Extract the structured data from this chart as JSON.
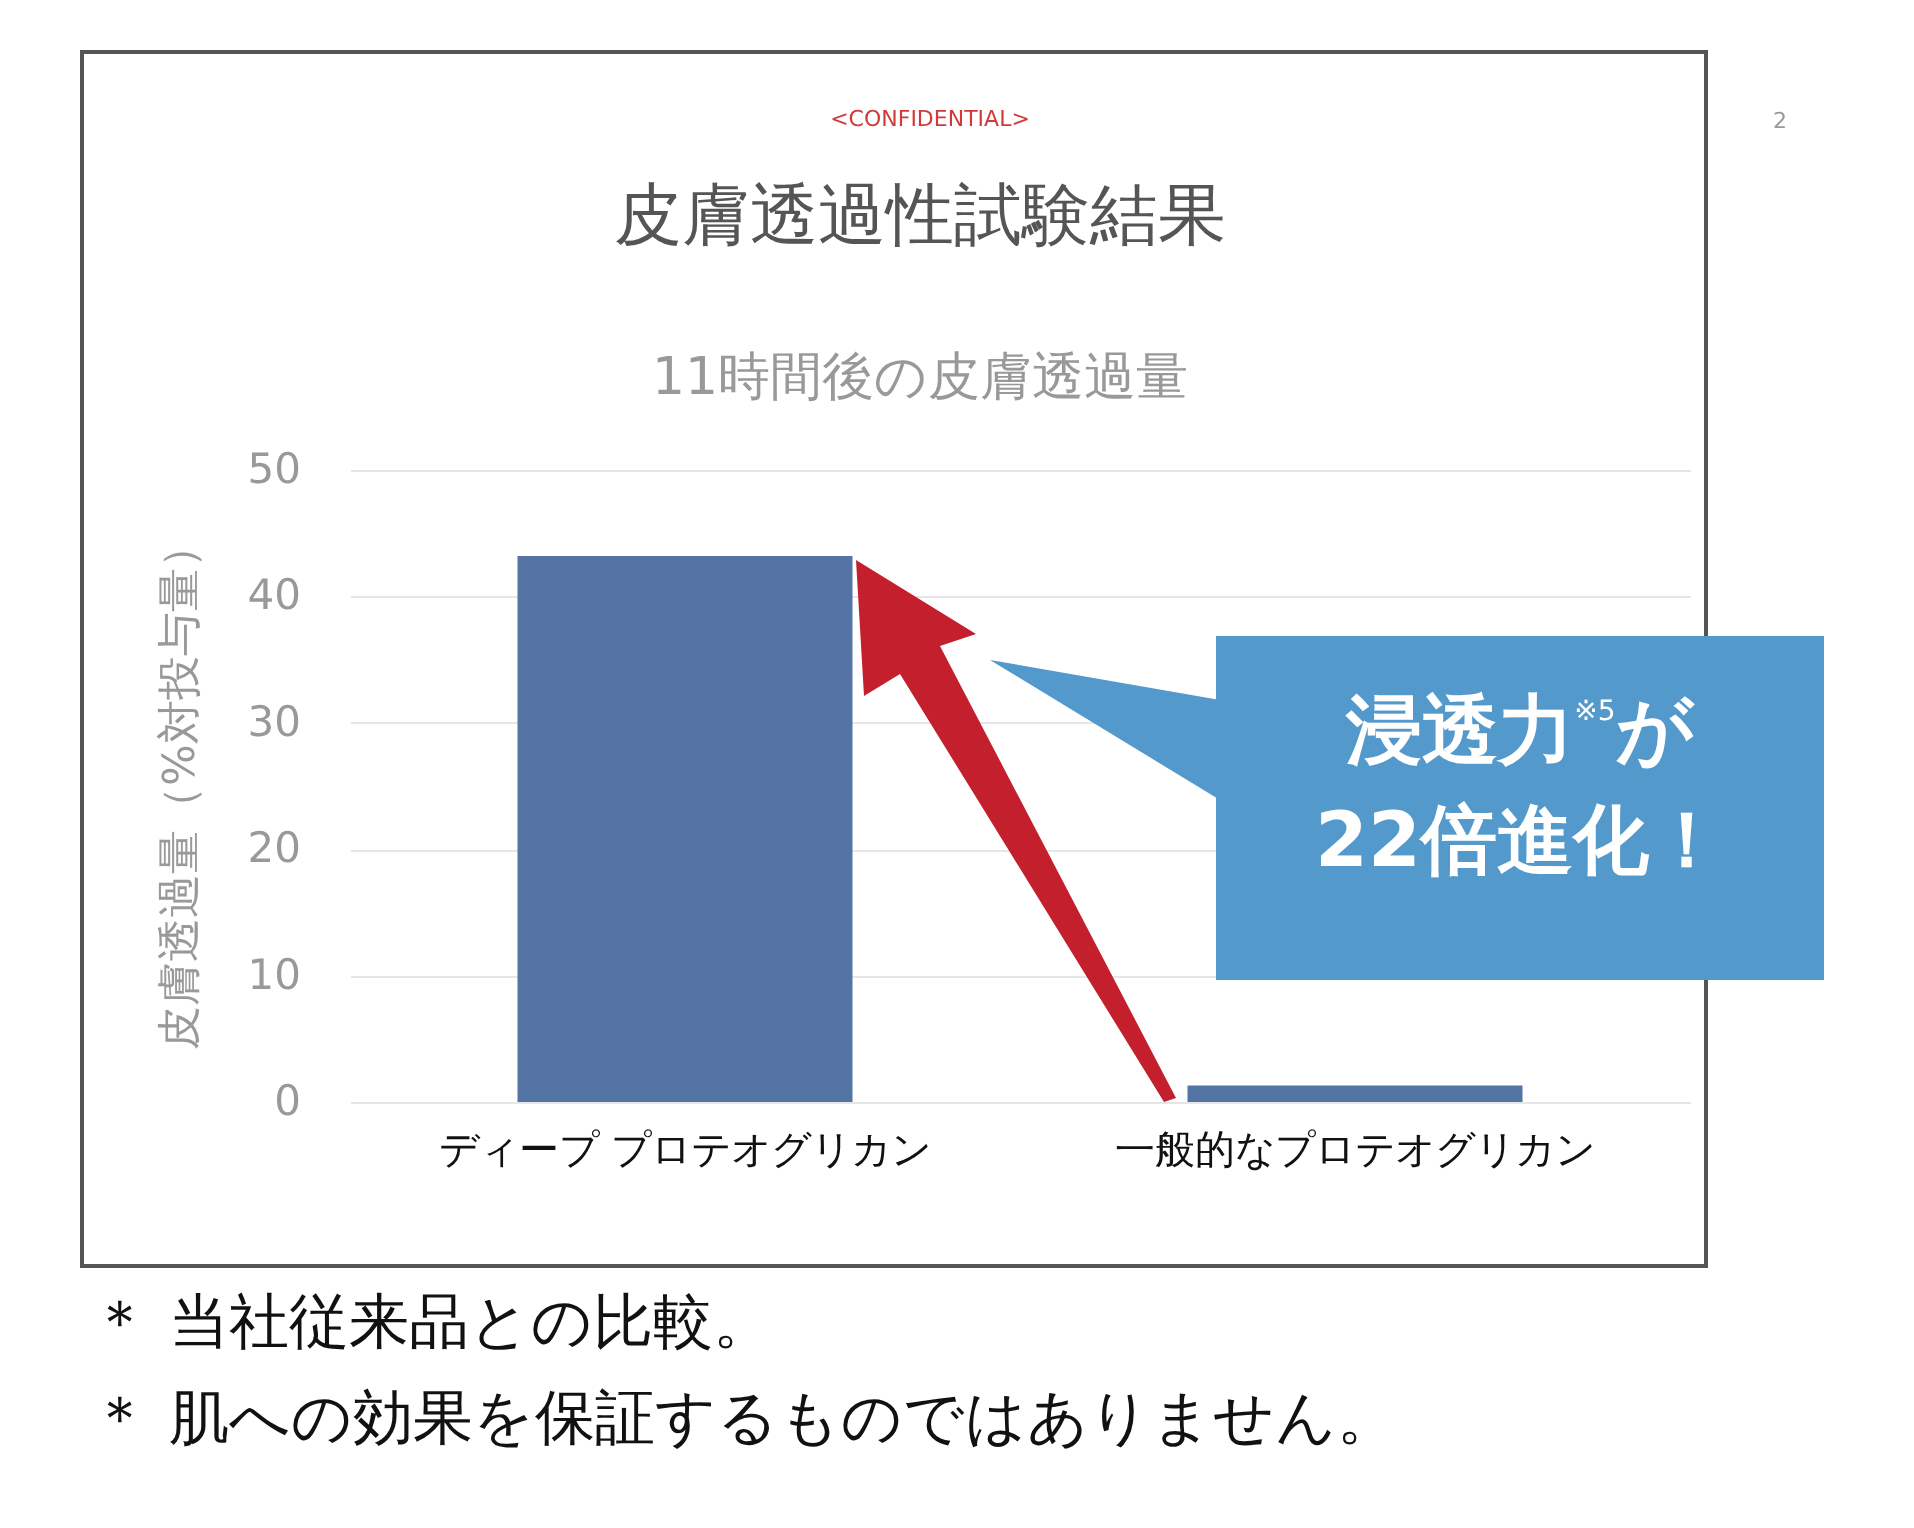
{
  "chart_data": {
    "type": "bar",
    "title": "皮膚透過性試験結果",
    "subtitle": "11時間後の皮膚透過量",
    "ylabel": "皮膚透過量（%対投与量）",
    "categories": [
      "ディープ プロテオグリカン",
      "一般的なプロテオグリカン"
    ],
    "values": [
      43.2,
      1.3
    ],
    "color": "#5474a6",
    "ylim": [
      0,
      50
    ],
    "yticks": [
      0,
      10,
      20,
      30,
      40,
      50
    ],
    "grid": "y",
    "annotations": [
      "<CONFIDENTIAL>",
      "2",
      "浸透力$^{※5}$が\n22倍進化！",
      "＊ 当社従来品との比較。",
      "＊ 肌への効果を保証するものではありません。"
    ]
  }
}
